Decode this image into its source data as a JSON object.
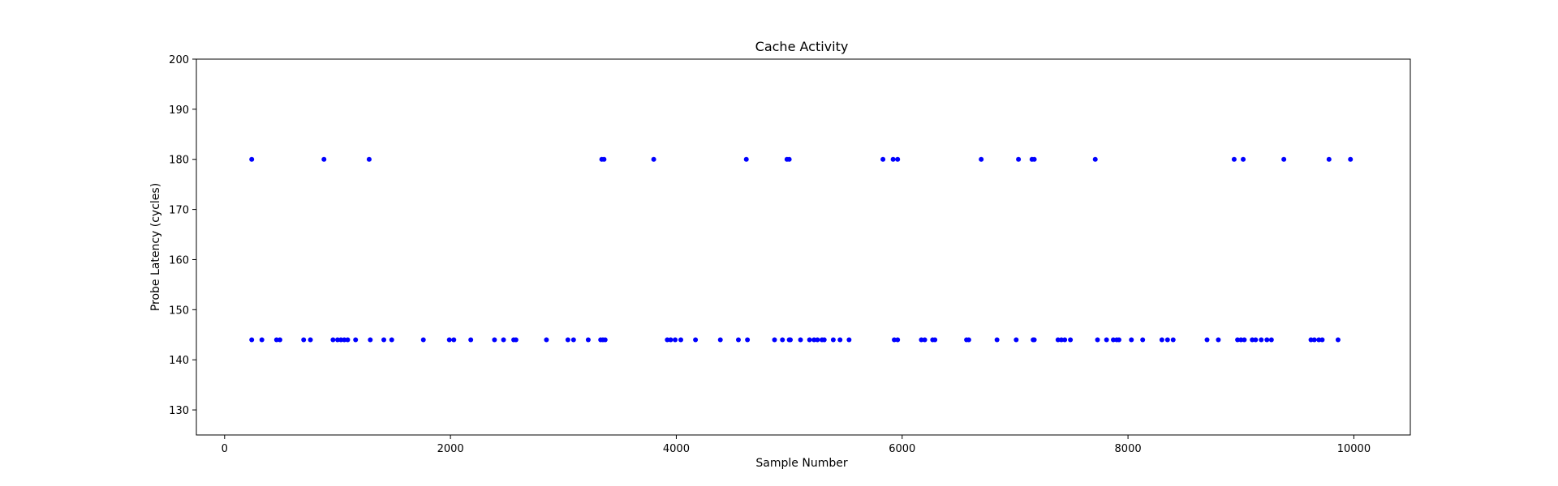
{
  "chart_data": {
    "type": "scatter",
    "title": "Cache Activity",
    "xlabel": "Sample Number",
    "ylabel": "Probe Latency (cycles)",
    "xlim": [
      -250,
      10500
    ],
    "ylim": [
      125,
      200
    ],
    "x_ticks": [
      0,
      2000,
      4000,
      6000,
      8000,
      10000
    ],
    "y_ticks": [
      130,
      140,
      150,
      160,
      170,
      180,
      190,
      200
    ],
    "grid": false,
    "legend": "none",
    "marker_color": "#0000ff",
    "series": [
      {
        "points": [
          [
            240,
            180
          ],
          [
            880,
            180
          ],
          [
            1280,
            180
          ],
          [
            3340,
            180
          ],
          [
            3360,
            180
          ],
          [
            3800,
            180
          ],
          [
            4620,
            180
          ],
          [
            4980,
            180
          ],
          [
            5000,
            180
          ],
          [
            5830,
            180
          ],
          [
            5920,
            180
          ],
          [
            5960,
            180
          ],
          [
            6700,
            180
          ],
          [
            7030,
            180
          ],
          [
            7150,
            180
          ],
          [
            7170,
            180
          ],
          [
            7710,
            180
          ],
          [
            8940,
            180
          ],
          [
            9020,
            180
          ],
          [
            9380,
            180
          ],
          [
            9780,
            180
          ],
          [
            9970,
            180
          ],
          [
            240,
            144
          ],
          [
            330,
            144
          ],
          [
            460,
            144
          ],
          [
            490,
            144
          ],
          [
            700,
            144
          ],
          [
            760,
            144
          ],
          [
            960,
            144
          ],
          [
            1000,
            144
          ],
          [
            1030,
            144
          ],
          [
            1060,
            144
          ],
          [
            1090,
            144
          ],
          [
            1160,
            144
          ],
          [
            1290,
            144
          ],
          [
            1410,
            144
          ],
          [
            1480,
            144
          ],
          [
            1760,
            144
          ],
          [
            1990,
            144
          ],
          [
            2030,
            144
          ],
          [
            2180,
            144
          ],
          [
            2390,
            144
          ],
          [
            2470,
            144
          ],
          [
            2560,
            144
          ],
          [
            2580,
            144
          ],
          [
            2850,
            144
          ],
          [
            3040,
            144
          ],
          [
            3090,
            144
          ],
          [
            3220,
            144
          ],
          [
            3330,
            144
          ],
          [
            3350,
            144
          ],
          [
            3370,
            144
          ],
          [
            3920,
            144
          ],
          [
            3950,
            144
          ],
          [
            3990,
            144
          ],
          [
            4040,
            144
          ],
          [
            4170,
            144
          ],
          [
            4390,
            144
          ],
          [
            4550,
            144
          ],
          [
            4630,
            144
          ],
          [
            4870,
            144
          ],
          [
            4940,
            144
          ],
          [
            5000,
            144
          ],
          [
            5010,
            144
          ],
          [
            5100,
            144
          ],
          [
            5180,
            144
          ],
          [
            5220,
            144
          ],
          [
            5250,
            144
          ],
          [
            5290,
            144
          ],
          [
            5310,
            144
          ],
          [
            5390,
            144
          ],
          [
            5450,
            144
          ],
          [
            5530,
            144
          ],
          [
            5930,
            144
          ],
          [
            5960,
            144
          ],
          [
            6170,
            144
          ],
          [
            6200,
            144
          ],
          [
            6270,
            144
          ],
          [
            6290,
            144
          ],
          [
            6570,
            144
          ],
          [
            6590,
            144
          ],
          [
            6840,
            144
          ],
          [
            7010,
            144
          ],
          [
            7160,
            144
          ],
          [
            7170,
            144
          ],
          [
            7380,
            144
          ],
          [
            7410,
            144
          ],
          [
            7440,
            144
          ],
          [
            7490,
            144
          ],
          [
            7730,
            144
          ],
          [
            7810,
            144
          ],
          [
            7870,
            144
          ],
          [
            7900,
            144
          ],
          [
            7920,
            144
          ],
          [
            8030,
            144
          ],
          [
            8130,
            144
          ],
          [
            8300,
            144
          ],
          [
            8350,
            144
          ],
          [
            8400,
            144
          ],
          [
            8700,
            144
          ],
          [
            8800,
            144
          ],
          [
            8970,
            144
          ],
          [
            9000,
            144
          ],
          [
            9030,
            144
          ],
          [
            9100,
            144
          ],
          [
            9130,
            144
          ],
          [
            9180,
            144
          ],
          [
            9230,
            144
          ],
          [
            9270,
            144
          ],
          [
            9620,
            144
          ],
          [
            9650,
            144
          ],
          [
            9690,
            144
          ],
          [
            9720,
            144
          ],
          [
            9860,
            144
          ]
        ]
      }
    ]
  }
}
